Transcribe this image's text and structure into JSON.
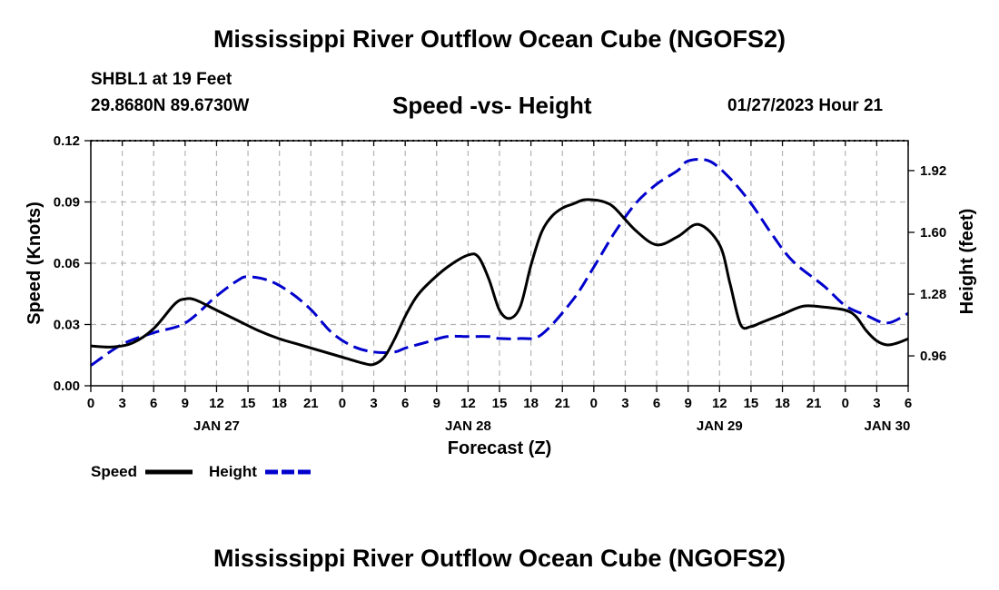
{
  "page": {
    "title_top": "Mississippi River Outflow Ocean Cube (NGOFS2)",
    "title_bottom": "Mississippi River Outflow Ocean Cube (NGOFS2)",
    "station": "SHBL1 at 19 Feet",
    "coords": "29.8680N  89.6730W",
    "subtitle": "Speed -vs- Height",
    "datetime": "01/27/2023 Hour 21"
  },
  "chart_data": {
    "type": "line",
    "title": "Speed -vs- Height",
    "xlabel": "Forecast (Z)",
    "ylabel": "Speed (Knots)",
    "y2label": "Height (feet)",
    "x_unit": "hours from 00Z Jan 27",
    "xlim": [
      0,
      78
    ],
    "ylim": [
      0,
      0.12
    ],
    "y2lim": [
      0.805,
      2.075
    ],
    "x_ticks": [
      0,
      3,
      6,
      9,
      12,
      15,
      18,
      21,
      24,
      27,
      30,
      33,
      36,
      39,
      42,
      45,
      48,
      51,
      54,
      57,
      60,
      63,
      66,
      69,
      72,
      75,
      78
    ],
    "x_tick_labels": [
      "0",
      "3",
      "6",
      "9",
      "12",
      "15",
      "18",
      "21",
      "0",
      "3",
      "6",
      "9",
      "12",
      "15",
      "18",
      "21",
      "0",
      "3",
      "6",
      "9",
      "12",
      "15",
      "18",
      "21",
      "0",
      "3",
      "6"
    ],
    "date_labels": [
      {
        "x": 12,
        "label": "JAN 27"
      },
      {
        "x": 36,
        "label": "JAN 28"
      },
      {
        "x": 60,
        "label": "JAN 29"
      },
      {
        "x": 76,
        "label": "JAN 30"
      }
    ],
    "y_ticks": [
      0.0,
      0.03,
      0.06,
      0.09,
      0.12
    ],
    "y_tick_labels": [
      "0.00",
      "0.03",
      "0.06",
      "0.09",
      "0.12"
    ],
    "y2_ticks": [
      0.96,
      1.28,
      1.6,
      1.92
    ],
    "y2_tick_labels": [
      "0.96",
      "1.28",
      "1.60",
      "1.92"
    ],
    "grid": true,
    "legend": {
      "placement": "bottom-left",
      "entries": [
        "Speed",
        "Height"
      ]
    },
    "series": [
      {
        "name": "Speed",
        "axis": "left",
        "color": "#000000",
        "dash": "solid",
        "x": [
          0,
          2,
          4,
          6,
          8,
          9,
          10,
          12,
          14,
          16,
          18,
          20,
          22,
          24,
          26,
          27,
          28,
          29,
          30,
          31,
          32,
          34,
          36,
          37,
          38,
          39,
          40,
          41,
          42,
          43,
          44,
          45,
          46,
          47,
          48,
          49,
          50,
          52,
          54,
          56,
          58,
          60,
          61,
          62,
          63,
          64,
          66,
          68,
          70,
          72,
          73,
          74,
          75,
          76,
          77,
          78
        ],
        "values": [
          0.0195,
          0.019,
          0.021,
          0.028,
          0.04,
          0.0425,
          0.042,
          0.037,
          0.032,
          0.027,
          0.023,
          0.02,
          0.017,
          0.014,
          0.011,
          0.0105,
          0.014,
          0.023,
          0.034,
          0.043,
          0.049,
          0.058,
          0.064,
          0.063,
          0.052,
          0.037,
          0.033,
          0.039,
          0.059,
          0.075,
          0.083,
          0.087,
          0.089,
          0.091,
          0.091,
          0.09,
          0.087,
          0.076,
          0.069,
          0.073,
          0.079,
          0.069,
          0.05,
          0.03,
          0.029,
          0.031,
          0.035,
          0.039,
          0.0385,
          0.037,
          0.034,
          0.027,
          0.022,
          0.02,
          0.021,
          0.023
        ]
      },
      {
        "name": "Height",
        "axis": "right",
        "color": "#0000cc",
        "dash": "dashed",
        "x": [
          0,
          3,
          6,
          9,
          12,
          14,
          15,
          17,
          19,
          21,
          23,
          25,
          27,
          29,
          30,
          32,
          34,
          36,
          38,
          39,
          41,
          43,
          46,
          48,
          50,
          52,
          54,
          56,
          57,
          59,
          61,
          63,
          65,
          67,
          70,
          72,
          74,
          76,
          78
        ],
        "values": [
          0.91,
          1.02,
          1.08,
          1.13,
          1.27,
          1.35,
          1.37,
          1.35,
          1.29,
          1.2,
          1.08,
          1.01,
          0.98,
          0.98,
          1.0,
          1.03,
          1.06,
          1.06,
          1.06,
          1.05,
          1.05,
          1.07,
          1.25,
          1.42,
          1.6,
          1.75,
          1.85,
          1.92,
          1.97,
          1.97,
          1.88,
          1.75,
          1.59,
          1.45,
          1.32,
          1.22,
          1.17,
          1.13,
          1.18
        ]
      }
    ]
  }
}
